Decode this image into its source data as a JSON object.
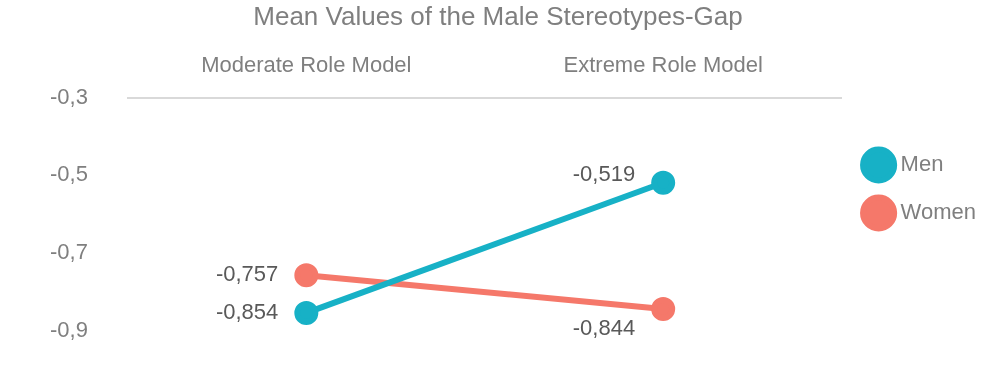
{
  "chart_data": {
    "type": "line",
    "title": "Mean Values of the Male Stereotypes-Gap",
    "categories": [
      "Moderate Role Model",
      "Extreme Role Model"
    ],
    "series": [
      {
        "name": "Men",
        "color": "#17b1c6",
        "values": [
          -0.854,
          -0.519
        ],
        "value_labels": [
          "-0,854",
          "-0,519"
        ]
      },
      {
        "name": "Women",
        "color": "#f5786a",
        "values": [
          -0.757,
          -0.844
        ],
        "value_labels": [
          "-0,757",
          "-0,844"
        ]
      }
    ],
    "ylim": [
      -0.9,
      -0.3
    ],
    "yticks": [
      {
        "value": -0.9,
        "label": "-0,9"
      },
      {
        "value": -0.7,
        "label": "-0,7"
      },
      {
        "value": -0.5,
        "label": "-0,5"
      },
      {
        "value": -0.3,
        "label": "-0,3"
      }
    ],
    "grid": false,
    "legend": "right",
    "marker": "circle",
    "line_style": "solid"
  }
}
